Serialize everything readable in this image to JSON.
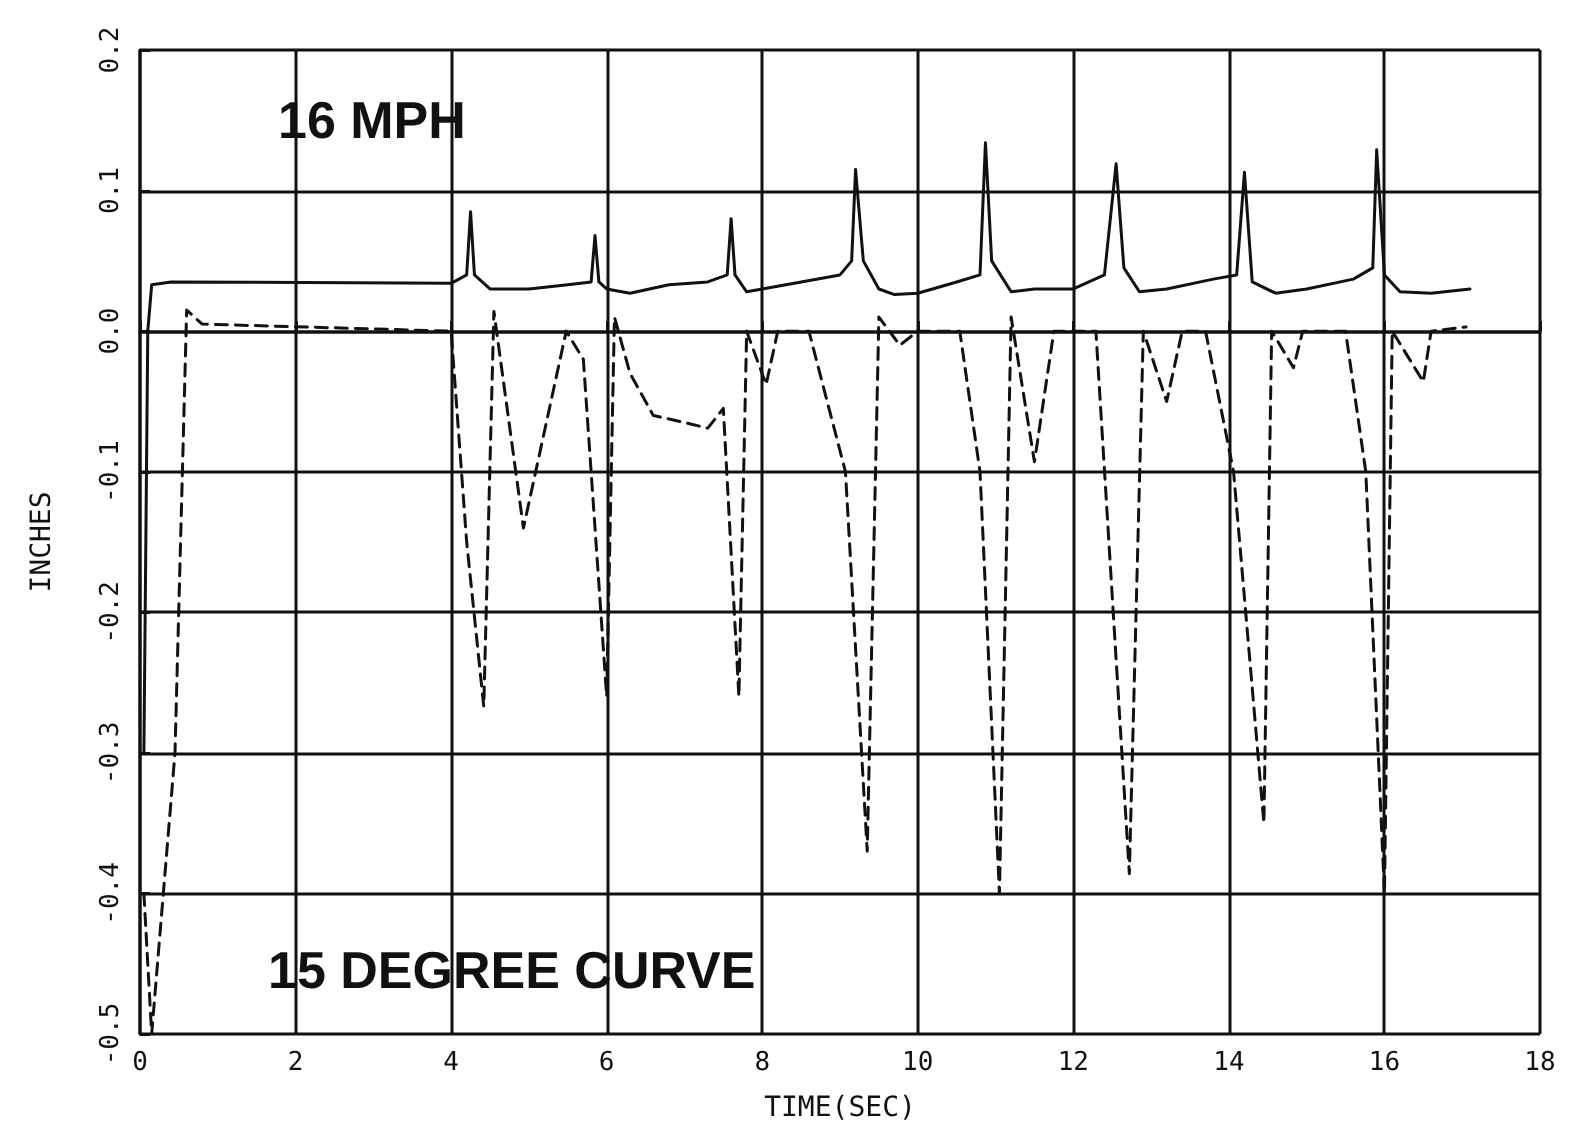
{
  "chart_data": {
    "type": "line",
    "xlabel": "TIME(SEC)",
    "ylabel": "INCHES",
    "annotations": [
      "16 MPH",
      "15 DEGREE CURVE"
    ],
    "xlim": [
      0,
      18
    ],
    "xticks": [
      0,
      2,
      4,
      6,
      8,
      10,
      12,
      14,
      16,
      18
    ],
    "ylim": [
      -0.5,
      0.2
    ],
    "yticks": [
      -0.5,
      -0.4,
      -0.3,
      -0.2,
      -0.1,
      {
        "value": 0,
        "label": "0.0"
      },
      0.1,
      0.2
    ],
    "grid": true,
    "marker": "none",
    "series": [
      {
        "color": "#111111",
        "line_style": "solid",
        "x": [
          0.05,
          0.1,
          0.15,
          0.4,
          4.0,
          4.2,
          4.25,
          4.3,
          4.5,
          5.0,
          5.5,
          5.8,
          5.85,
          5.9,
          6.0,
          6.3,
          6.8,
          7.3,
          7.55,
          7.6,
          7.65,
          7.8,
          8.0,
          8.5,
          9.0,
          9.15,
          9.2,
          9.3,
          9.5,
          9.7,
          10.0,
          10.5,
          10.8,
          10.87,
          10.95,
          11.2,
          11.5,
          12.0,
          12.4,
          12.55,
          12.65,
          12.85,
          13.2,
          13.8,
          14.1,
          14.2,
          14.3,
          14.6,
          15.0,
          15.6,
          15.85,
          15.9,
          16.0,
          16.2,
          16.6,
          17.1
        ],
        "values": [
          -0.3,
          0.0,
          0.033,
          0.035,
          0.034,
          0.04,
          0.085,
          0.04,
          0.03,
          0.03,
          0.033,
          0.035,
          0.068,
          0.035,
          0.03,
          0.027,
          0.033,
          0.035,
          0.04,
          0.08,
          0.04,
          0.028,
          0.03,
          0.035,
          0.04,
          0.05,
          0.115,
          0.05,
          0.03,
          0.026,
          0.027,
          0.035,
          0.04,
          0.134,
          0.05,
          0.028,
          0.03,
          0.03,
          0.04,
          0.119,
          0.045,
          0.028,
          0.03,
          0.037,
          0.04,
          0.113,
          0.035,
          0.027,
          0.03,
          0.037,
          0.045,
          0.129,
          0.04,
          0.028,
          0.027,
          0.03
        ]
      },
      {
        "color": "#111111",
        "line_style": "dashed",
        "x": [
          0.05,
          0.15,
          0.3,
          0.45,
          0.6,
          0.8,
          4.0,
          4.2,
          4.42,
          4.55,
          4.93,
          5.48,
          5.7,
          6.0,
          6.1,
          6.3,
          6.6,
          7.0,
          7.3,
          7.5,
          7.7,
          7.8,
          8.05,
          8.2,
          8.6,
          9.07,
          9.35,
          9.5,
          9.77,
          10.0,
          10.54,
          10.8,
          11.05,
          11.2,
          11.5,
          11.75,
          12.29,
          12.72,
          12.9,
          13.2,
          13.4,
          13.7,
          14.06,
          14.45,
          14.55,
          14.83,
          14.95,
          15.5,
          15.76,
          16.0,
          16.1,
          16.5,
          16.6,
          17.05
        ],
        "values": [
          -0.4,
          -0.5,
          -0.4,
          -0.3,
          0.015,
          0.005,
          0.0,
          -0.15,
          -0.267,
          0.014,
          -0.14,
          0.0,
          -0.02,
          -0.26,
          0.01,
          -0.03,
          -0.06,
          -0.065,
          -0.069,
          -0.055,
          -0.26,
          0.0,
          -0.038,
          0.0,
          0.0,
          -0.1,
          -0.37,
          0.01,
          -0.01,
          0.0,
          0.0,
          -0.1,
          -0.4,
          0.01,
          -0.093,
          0.0,
          0.0,
          -0.386,
          0.0,
          -0.05,
          0.0,
          0.0,
          -0.1,
          -0.35,
          0.0,
          -0.026,
          0.0,
          0.0,
          -0.1,
          -0.4,
          0.0,
          -0.036,
          0.0,
          0.003
        ]
      }
    ]
  }
}
